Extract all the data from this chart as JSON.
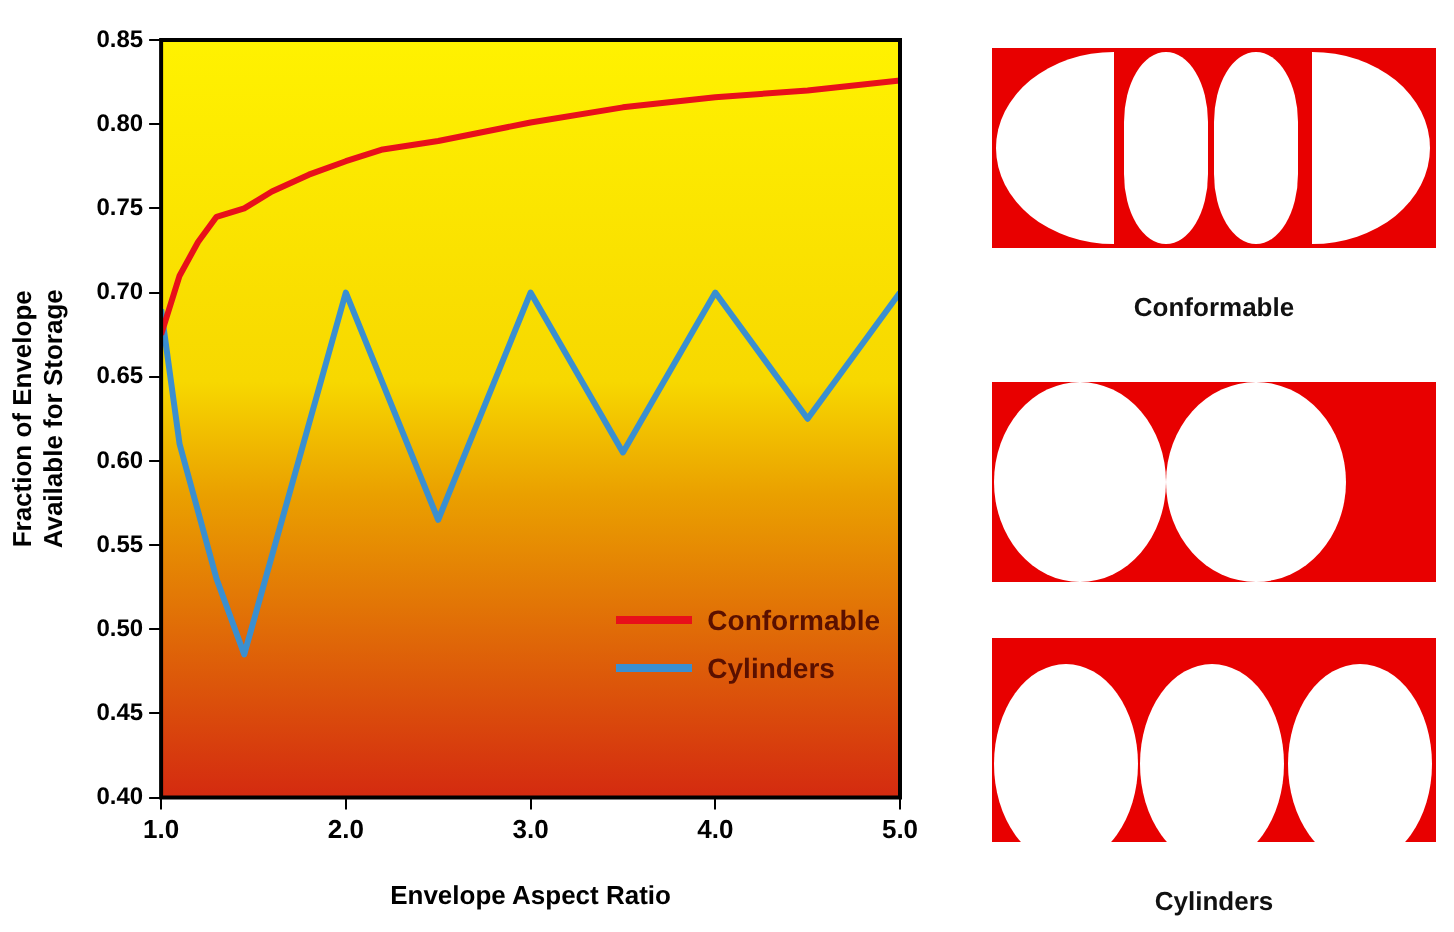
{
  "chart_data": {
    "type": "line",
    "xlabel": "Envelope Aspect Ratio",
    "ylabel": "Fraction of Envelope\nAvailable for Storage",
    "xlim": [
      1.0,
      5.0
    ],
    "xticks": [
      {
        "value": 1,
        "label": "1.0"
      },
      {
        "value": 2,
        "label": "2.0"
      },
      {
        "value": 3,
        "label": "3.0"
      },
      {
        "value": 4,
        "label": "4.0"
      },
      {
        "value": 5,
        "label": "5.0"
      }
    ],
    "ylim": [
      0.4,
      0.85
    ],
    "yticks": [
      {
        "value": 0.4,
        "label": "0.40"
      },
      {
        "value": 0.45,
        "label": "0.45"
      },
      {
        "value": 0.5,
        "label": "0.50"
      },
      {
        "value": 0.55,
        "label": "0.55"
      },
      {
        "value": 0.6,
        "label": "0.60"
      },
      {
        "value": 0.65,
        "label": "0.65"
      },
      {
        "value": 0.7,
        "label": "0.70"
      },
      {
        "value": 0.75,
        "label": "0.75"
      },
      {
        "value": 0.8,
        "label": "0.80"
      },
      {
        "value": 0.85,
        "label": "0.85"
      }
    ],
    "grid": false,
    "legend": "bottom right",
    "marker": "none",
    "line_style": "solid",
    "series": [
      {
        "name": "Conformable",
        "color": "#e8101a",
        "x": [
          1.0,
          1.1,
          1.2,
          1.3,
          1.45,
          1.6,
          1.8,
          2.0,
          2.2,
          2.5,
          3.0,
          3.5,
          4.0,
          4.5,
          5.0
        ],
        "values": [
          0.675,
          0.71,
          0.73,
          0.745,
          0.75,
          0.76,
          0.77,
          0.778,
          0.785,
          0.79,
          0.801,
          0.81,
          0.816,
          0.82,
          0.826
        ]
      },
      {
        "name": "Cylinders",
        "color": "#3a8fd0",
        "x": [
          1.0,
          1.1,
          1.3,
          1.45,
          2.0,
          2.5,
          3.0,
          3.5,
          4.0,
          4.5,
          5.0
        ],
        "values": [
          0.69,
          0.61,
          0.53,
          0.485,
          0.7,
          0.565,
          0.7,
          0.605,
          0.7,
          0.625,
          0.7
        ]
      }
    ],
    "annotations": [
      "Conformable",
      "Cylinders"
    ]
  }
}
